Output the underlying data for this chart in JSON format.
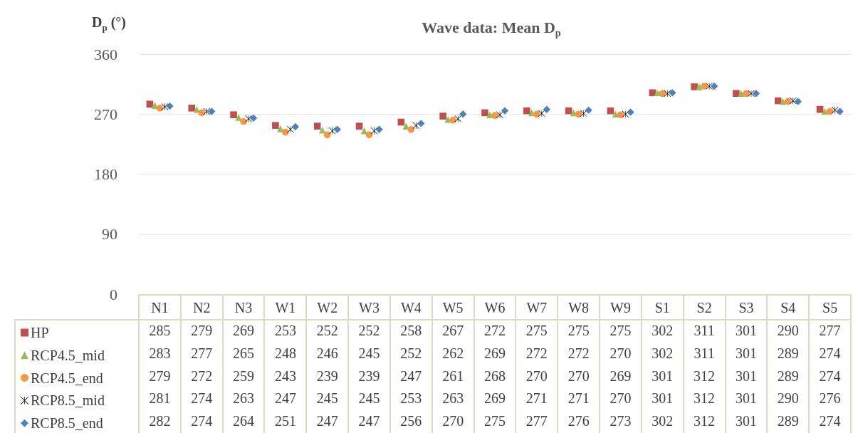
{
  "chart_data": {
    "type": "scatter",
    "title": "Wave data: Mean D$_{p}$",
    "ylabel": "D$_{p}$ (°)",
    "categories": [
      "N1",
      "N2",
      "N3",
      "W1",
      "W2",
      "W3",
      "W4",
      "W5",
      "W6",
      "W7",
      "W8",
      "W9",
      "S1",
      "S2",
      "S3",
      "S4",
      "S5"
    ],
    "series": [
      {
        "name": "HP",
        "color": "#c0504d",
        "marker": "square",
        "values": [
          285,
          279,
          269,
          253,
          252,
          252,
          258,
          267,
          272,
          275,
          275,
          275,
          302,
          311,
          301,
          290,
          277
        ]
      },
      {
        "name": "RCP4.5_mid",
        "color": "#9bbb59",
        "marker": "triangle",
        "values": [
          283,
          277,
          265,
          248,
          246,
          245,
          252,
          262,
          269,
          272,
          272,
          270,
          302,
          311,
          301,
          289,
          274
        ]
      },
      {
        "name": "RCP4.5_end",
        "color": "#f79646",
        "marker": "circle",
        "values": [
          279,
          272,
          259,
          243,
          239,
          239,
          247,
          261,
          268,
          270,
          270,
          269,
          301,
          312,
          301,
          289,
          274
        ]
      },
      {
        "name": "RCP8.5_mid",
        "color": "#000000",
        "marker": "cross",
        "values": [
          281,
          274,
          263,
          247,
          245,
          245,
          253,
          263,
          269,
          271,
          271,
          270,
          301,
          312,
          301,
          290,
          276
        ]
      },
      {
        "name": "RCP8.5_end",
        "color": "#4f81bd",
        "marker": "diamond",
        "values": [
          282,
          274,
          264,
          251,
          247,
          247,
          256,
          270,
          275,
          277,
          276,
          273,
          302,
          312,
          301,
          289,
          274
        ]
      }
    ],
    "ylim": [
      0,
      360
    ],
    "yticks": [
      0,
      90,
      180,
      270,
      360
    ],
    "grid": "y",
    "legend": "bottom left",
    "data_labels": true
  }
}
